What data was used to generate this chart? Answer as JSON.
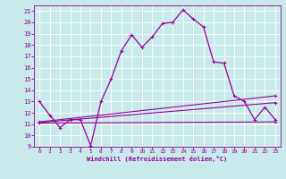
{
  "xlabel": "Windchill (Refroidissement éolien,°C)",
  "bg_color": "#c8eaea",
  "line_color": "#990099",
  "grid_color": "#ffffff",
  "xlim": [
    -0.5,
    23.5
  ],
  "ylim": [
    9,
    21.5
  ],
  "xticks": [
    0,
    1,
    2,
    3,
    4,
    5,
    6,
    7,
    8,
    9,
    10,
    11,
    12,
    13,
    14,
    15,
    16,
    17,
    18,
    19,
    20,
    21,
    22,
    23
  ],
  "yticks": [
    9,
    10,
    11,
    12,
    13,
    14,
    15,
    16,
    17,
    18,
    19,
    20,
    21
  ],
  "main_x": [
    0,
    1,
    2,
    3,
    4,
    5,
    6,
    7,
    8,
    9,
    10,
    11,
    12,
    13,
    14,
    15,
    16,
    17,
    18,
    19,
    20,
    21,
    22,
    23
  ],
  "main_y": [
    13.0,
    11.8,
    10.7,
    11.4,
    11.4,
    9.1,
    13.0,
    15.0,
    17.5,
    18.9,
    17.8,
    18.7,
    19.9,
    20.0,
    21.1,
    20.3,
    19.6,
    16.5,
    16.4,
    13.5,
    13.0,
    11.4,
    12.5,
    11.4
  ],
  "line1_x": [
    0,
    23
  ],
  "line1_y": [
    11.1,
    11.2
  ],
  "line2_x": [
    0,
    23
  ],
  "line2_y": [
    11.15,
    12.9
  ],
  "line3_x": [
    0,
    23
  ],
  "line3_y": [
    11.2,
    13.5
  ]
}
